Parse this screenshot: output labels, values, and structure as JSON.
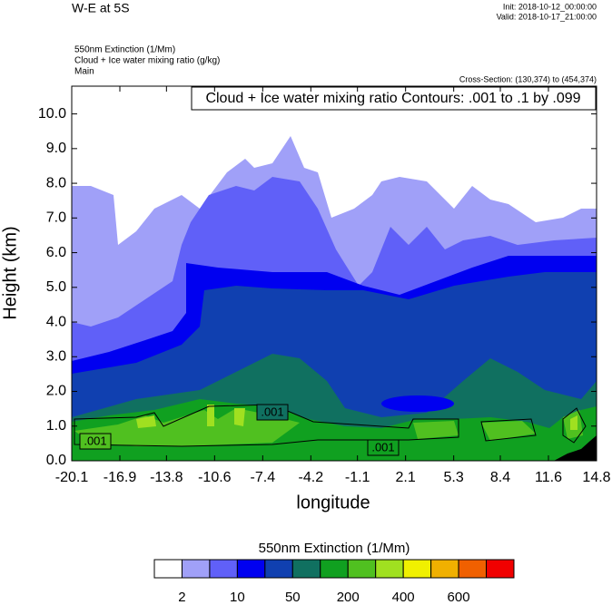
{
  "chart_data": {
    "type": "contour",
    "title": "W-E at 5S",
    "init": "Init: 2018-10-12_00:00:00",
    "valid": "Valid: 2018-10-17_21:00:00",
    "fields": [
      "550nm Extinction   (1/Mm)",
      "Cloud + Ice water mixing ratio   (g/kg)",
      "Main"
    ],
    "cross_section": "Cross-Section: (130,374) to (454,374)",
    "contour_info": "Cloud + Ice water mixing ratio Contours: .001 to .1 by .099",
    "contour_labels": [
      ".001",
      ".001",
      ".001"
    ],
    "xlabel": "longitude",
    "ylabel": "Height (km)",
    "xlim": [
      -20.1,
      14.8
    ],
    "xticks": [
      -20.1,
      -16.9,
      -13.8,
      -10.6,
      -7.4,
      -4.2,
      -1.1,
      2.1,
      5.3,
      8.4,
      11.6,
      14.8
    ],
    "ylim": [
      0,
      10.8
    ],
    "yticks": [
      {
        "value": 0,
        "label": "0.0"
      },
      {
        "value": 1,
        "label": "1.0"
      },
      {
        "value": 2,
        "label": "2.0"
      },
      {
        "value": 3,
        "label": "3.0"
      },
      {
        "value": 4,
        "label": "4.0"
      },
      {
        "value": 5,
        "label": "5.0"
      },
      {
        "value": 6,
        "label": "6.0"
      },
      {
        "value": 7,
        "label": "7.0"
      },
      {
        "value": 8,
        "label": "8.0"
      },
      {
        "value": 9,
        "label": "9.0"
      },
      {
        "value": 10,
        "label": "10.0"
      }
    ],
    "colorbar": {
      "title": "550nm Extinction  (1/Mm)",
      "colors": [
        "#ffffff",
        "#a0a0f8",
        "#6060f8",
        "#0000f0",
        "#1040b0",
        "#107060",
        "#10a020",
        "#50c020",
        "#a0e020",
        "#f0f000",
        "#f0b000",
        "#f06000",
        "#f00000"
      ],
      "levels": [
        2,
        10,
        50,
        200,
        400,
        600
      ]
    }
  }
}
